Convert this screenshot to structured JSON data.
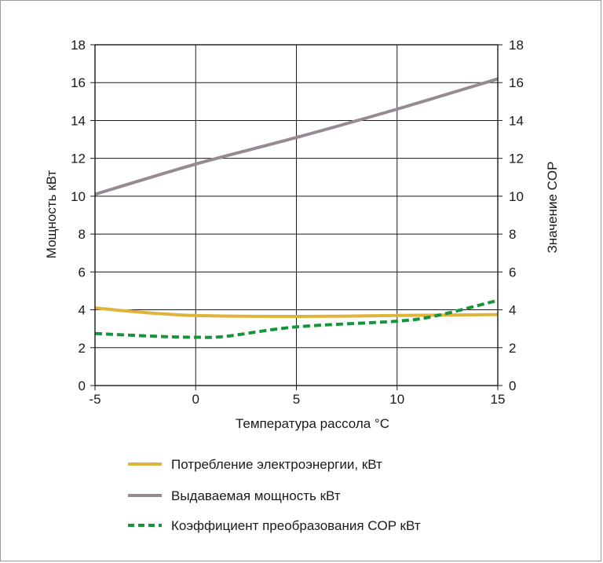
{
  "chart_data": {
    "type": "line",
    "xlabel": "Температура рассола °C",
    "ylabel": "Мощность кВт",
    "y2label": "Значение COP",
    "xlim": [
      -5,
      15
    ],
    "ylim": [
      0,
      18
    ],
    "y2lim": [
      0,
      18
    ],
    "xticks": [
      "-5",
      "0",
      "5",
      "10",
      "15"
    ],
    "yticks": [
      "0",
      "2",
      "4",
      "6",
      "8",
      "10",
      "12",
      "14",
      "16",
      "18"
    ],
    "y2ticks": [
      "0",
      "2",
      "4",
      "6",
      "8",
      "10",
      "12",
      "14",
      "16",
      "18"
    ],
    "grid": true,
    "legend_position": "bottom",
    "series": [
      {
        "name": "Потребление электроэнергии, кВт",
        "color": "#e0b43a",
        "style": "solid",
        "x": [
          -5,
          -3,
          0,
          5,
          10,
          15
        ],
        "y": [
          4.1,
          3.9,
          3.7,
          3.65,
          3.7,
          3.75
        ]
      },
      {
        "name": "Выдаваемая мощность кВт",
        "color": "#968a93",
        "style": "solid",
        "x": [
          -5,
          0,
          5,
          10,
          15
        ],
        "y": [
          10.1,
          11.7,
          13.1,
          14.6,
          16.2
        ]
      },
      {
        "name": "Коэффициент преобразования COP кВт",
        "color": "#16963c",
        "style": "dashed",
        "x": [
          -5,
          -2,
          0,
          1.5,
          5,
          10,
          12,
          15
        ],
        "y": [
          2.75,
          2.6,
          2.55,
          2.6,
          3.1,
          3.4,
          3.7,
          4.5
        ]
      }
    ]
  }
}
